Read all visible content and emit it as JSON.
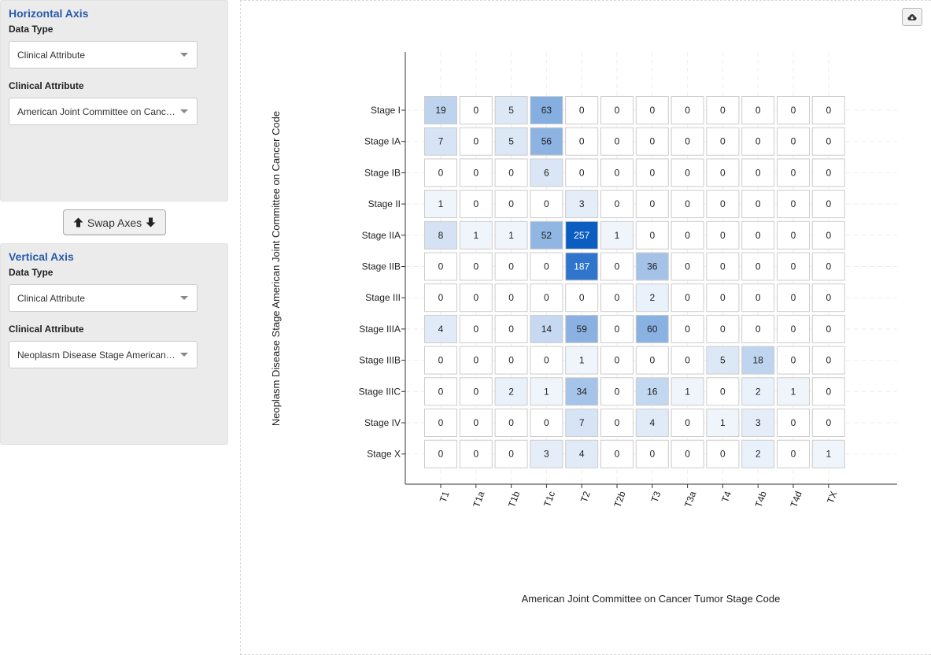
{
  "horizontal_axis": {
    "title": "Horizontal Axis",
    "data_type_label": "Data Type",
    "data_type_value": "Clinical Attribute",
    "attribute_label": "Clinical Attribute",
    "attribute_value": "American Joint Committee on Cancer Tumor Stage Code"
  },
  "swap_label": "Swap Axes",
  "vertical_axis": {
    "title": "Vertical Axis",
    "data_type_label": "Data Type",
    "data_type_value": "Clinical Attribute",
    "attribute_label": "Clinical Attribute",
    "attribute_value": "Neoplasm Disease Stage American Joint Committee on Cancer Code"
  },
  "icons": {
    "swap_up": "arrow-up-icon",
    "swap_down": "arrow-down-icon",
    "download": "cloud-download-icon"
  },
  "colors": {
    "cell_low": "#ffffff",
    "cell_high": "#0b5dc2",
    "cell_border": "#cccccc",
    "grid": "#eeeeee",
    "axis": "#333333"
  },
  "chart_data": {
    "type": "heatmap",
    "xlabel": "American Joint Committee on Cancer Tumor Stage Code",
    "ylabel": "Neoplasm Disease Stage American Joint Committee on Cancer Code",
    "x_categories": [
      "T1",
      "T1a",
      "T1b",
      "T1c",
      "T2",
      "T2b",
      "T3",
      "T3a",
      "T4",
      "T4b",
      "T4d",
      "TX"
    ],
    "y_categories": [
      "Stage I",
      "Stage IA",
      "Stage IB",
      "Stage II",
      "Stage IIA",
      "Stage IIB",
      "Stage III",
      "Stage IIIA",
      "Stage IIIB",
      "Stage IIIC",
      "Stage IV",
      "Stage X"
    ],
    "values": [
      [
        19,
        0,
        5,
        63,
        0,
        0,
        0,
        0,
        0,
        0,
        0,
        0
      ],
      [
        7,
        0,
        5,
        56,
        0,
        0,
        0,
        0,
        0,
        0,
        0,
        0
      ],
      [
        0,
        0,
        0,
        6,
        0,
        0,
        0,
        0,
        0,
        0,
        0,
        0
      ],
      [
        1,
        0,
        0,
        0,
        3,
        0,
        0,
        0,
        0,
        0,
        0,
        0
      ],
      [
        8,
        1,
        1,
        52,
        257,
        1,
        0,
        0,
        0,
        0,
        0,
        0
      ],
      [
        0,
        0,
        0,
        0,
        187,
        0,
        36,
        0,
        0,
        0,
        0,
        0
      ],
      [
        0,
        0,
        0,
        0,
        0,
        0,
        2,
        0,
        0,
        0,
        0,
        0
      ],
      [
        4,
        0,
        0,
        14,
        59,
        0,
        60,
        0,
        0,
        0,
        0,
        0
      ],
      [
        0,
        0,
        0,
        0,
        1,
        0,
        0,
        0,
        5,
        18,
        0,
        0
      ],
      [
        0,
        0,
        2,
        1,
        34,
        0,
        16,
        1,
        0,
        2,
        1,
        0
      ],
      [
        0,
        0,
        0,
        0,
        7,
        0,
        4,
        0,
        1,
        3,
        0,
        0
      ],
      [
        0,
        0,
        0,
        3,
        4,
        0,
        0,
        0,
        0,
        2,
        0,
        1
      ]
    ],
    "grid": true
  }
}
